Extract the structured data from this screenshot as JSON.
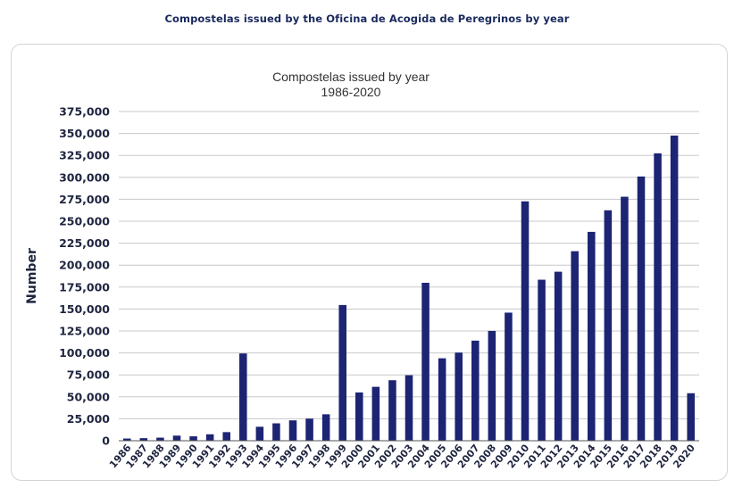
{
  "figure_title": "Compostelas issued by the Oficina de Acogida de Peregrinos by year",
  "chart_data": {
    "type": "bar",
    "title": [
      "Compostelas issued by year",
      "1986-2020"
    ],
    "xlabel": "",
    "ylabel": "Number",
    "ylim": [
      0,
      375000
    ],
    "yticks": [
      0,
      25000,
      50000,
      75000,
      100000,
      125000,
      150000,
      175000,
      200000,
      225000,
      250000,
      275000,
      300000,
      325000,
      350000,
      375000
    ],
    "ytick_labels": [
      "0",
      "25,000",
      "50,000",
      "75,000",
      "100,000",
      "125,000",
      "150,000",
      "175,000",
      "200,000",
      "225,000",
      "250,000",
      "275,000",
      "300,000",
      "325,000",
      "350,000",
      "375,000"
    ],
    "grid": true,
    "bar_color": "#1c2473",
    "categories": [
      "1986",
      "1987",
      "1988",
      "1989",
      "1990",
      "1991",
      "1992",
      "1993",
      "1994",
      "1995",
      "1996",
      "1997",
      "1998",
      "1999",
      "2000",
      "2001",
      "2002",
      "2003",
      "2004",
      "2005",
      "2006",
      "2007",
      "2008",
      "2009",
      "2010",
      "2011",
      "2012",
      "2013",
      "2014",
      "2015",
      "2016",
      "2017",
      "2018",
      "2019",
      "2020"
    ],
    "values": [
      2500,
      2900,
      3500,
      5800,
      5000,
      7300,
      9800,
      99400,
      15900,
      19800,
      23200,
      25200,
      30100,
      154600,
      55000,
      61400,
      68900,
      74600,
      179900,
      93900,
      100400,
      114000,
      125100,
      145900,
      272700,
      183400,
      192500,
      215900,
      237900,
      262500,
      277900,
      301000,
      327400,
      347600,
      54100
    ]
  }
}
